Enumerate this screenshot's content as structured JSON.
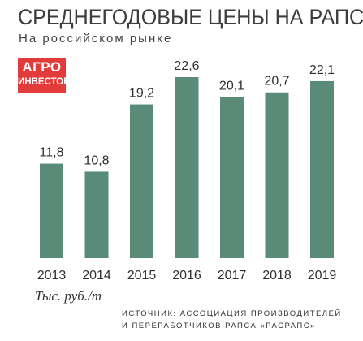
{
  "title": "СРЕДНЕГОДОВЫЕ ЦЕНЫ НА РАПС",
  "subtitle": "На российском рынке",
  "logo": {
    "line1": "АГРО",
    "line2": "ИНВЕСТОР"
  },
  "units": "Тыс. руб./т",
  "source": {
    "line1": "ИСТОЧНИК: АССОЦИАЦИЯ ПРОИЗВОДИТЕЛЕЙ",
    "line2": "И ПЕРЕРАБОТЧИКОВ РАПСА «РАСРАПС»"
  },
  "colors": {
    "bar": "#5a8b78",
    "logo_bg": "#e23b3b"
  },
  "chart_data": {
    "type": "bar",
    "categories": [
      "2013",
      "2014",
      "2015",
      "2016",
      "2017",
      "2018",
      "2019"
    ],
    "values": [
      11.8,
      10.8,
      19.2,
      22.6,
      20.1,
      20.7,
      22.1
    ],
    "value_labels": [
      "11,8",
      "10,8",
      "19,2",
      "22,6",
      "20,1",
      "20,7",
      "22,1"
    ],
    "title": "СРЕДНЕГОДОВЫЕ ЦЕНЫ НА РАПС",
    "ylabel": "Тыс. руб./т",
    "ylim": [
      0,
      22.6
    ],
    "grid": false,
    "legend": "none"
  }
}
